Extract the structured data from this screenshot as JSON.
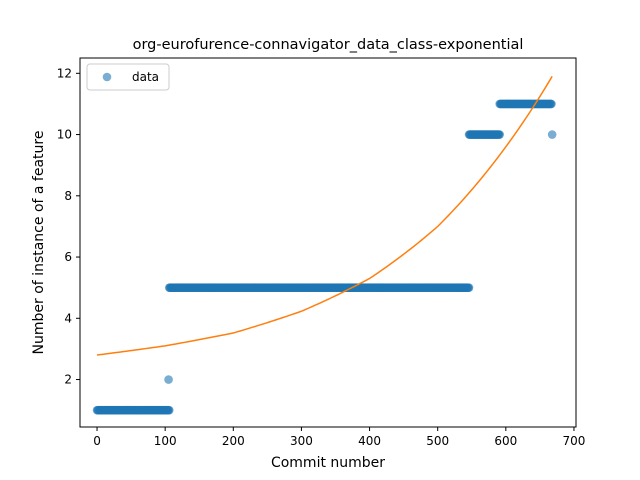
{
  "chart_data": {
    "type": "scatter",
    "title": "org-eurofurence-connavigator_data_class-exponential",
    "xlabel": "Commit number",
    "ylabel": "Number of instance of a feature",
    "xlim": [
      -25,
      703
    ],
    "ylim": [
      0.45,
      12.5
    ],
    "xticks": [
      0,
      100,
      200,
      300,
      400,
      500,
      600,
      700
    ],
    "yticks": [
      2,
      4,
      6,
      8,
      10,
      12
    ],
    "legend": {
      "placement": "top-left",
      "entries": [
        "data"
      ]
    },
    "colors": {
      "scatter": "#1f77b4",
      "fit": "#ff7f0e"
    },
    "series": [
      {
        "name": "data",
        "kind": "scatter",
        "runs": [
          {
            "x_start": 0,
            "x_end": 106,
            "y": 1
          },
          {
            "x_start": 105,
            "x_end": 105,
            "y": 2
          },
          {
            "x_start": 106,
            "x_end": 546,
            "y": 5
          },
          {
            "x_start": 546,
            "x_end": 591,
            "y": 10
          },
          {
            "x_start": 591,
            "x_end": 667,
            "y": 11
          },
          {
            "x_start": 668,
            "x_end": 668,
            "y": 10
          }
        ]
      },
      {
        "kind": "line",
        "fit": "exponential",
        "x": [
          0,
          100,
          200,
          300,
          400,
          500,
          600,
          668
        ],
        "y": [
          2.8,
          3.1,
          3.52,
          4.23,
          5.3,
          7.0,
          9.6,
          11.9
        ]
      }
    ]
  }
}
